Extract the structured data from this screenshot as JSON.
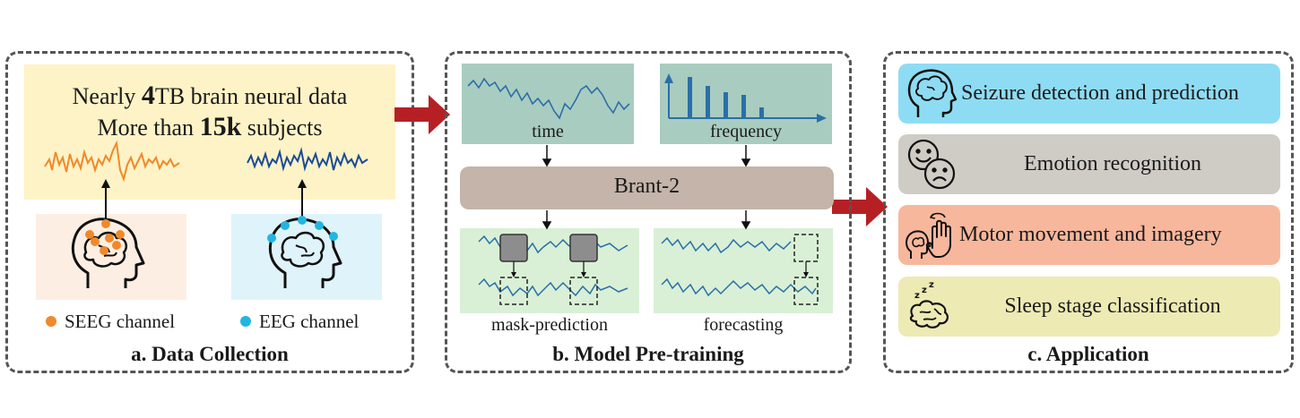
{
  "data_collection": {
    "caption": "a. Data Collection",
    "line1_pre": "Nearly ",
    "line1_bold": "4",
    "line1_post": "TB brain neural data",
    "line2_pre": "More than ",
    "line2_bold": "15k",
    "line2_post": " subjects",
    "legend_seeg": "SEEG channel",
    "legend_eeg": "EEG channel",
    "colors": {
      "seeg": "#f0892b",
      "eeg": "#22b5e3",
      "stats_bg": "#fdf3c6",
      "seeg_bg": "#fdeee3",
      "eeg_bg": "#dff3fa"
    }
  },
  "pretraining": {
    "caption": "b. Model Pre-training",
    "time_label": "time",
    "frequency_label": "frequency",
    "model_label": "Brant-2",
    "mask_label": "mask-prediction",
    "forecast_label": "forecasting",
    "colors": {
      "input_bg": "#a9ccc0",
      "model_bg": "#c4b4aa",
      "task_bg": "#d9f0d6",
      "signal": "#2a6fa8"
    }
  },
  "application": {
    "caption": "c. Application",
    "items": [
      {
        "label": "Seizure detection and prediction",
        "icon": "head-brain-icon",
        "color": "#8edcf3"
      },
      {
        "label": "Emotion recognition",
        "icon": "emotion-faces-icon",
        "color": "#cfccc6"
      },
      {
        "label": "Motor movement and imagery",
        "icon": "hand-brain-icon",
        "color": "#f7b79c"
      },
      {
        "label": "Sleep stage classification",
        "icon": "sleeping-brain-icon",
        "color": "#edeab4"
      }
    ]
  },
  "arrow_color": "#b62025"
}
